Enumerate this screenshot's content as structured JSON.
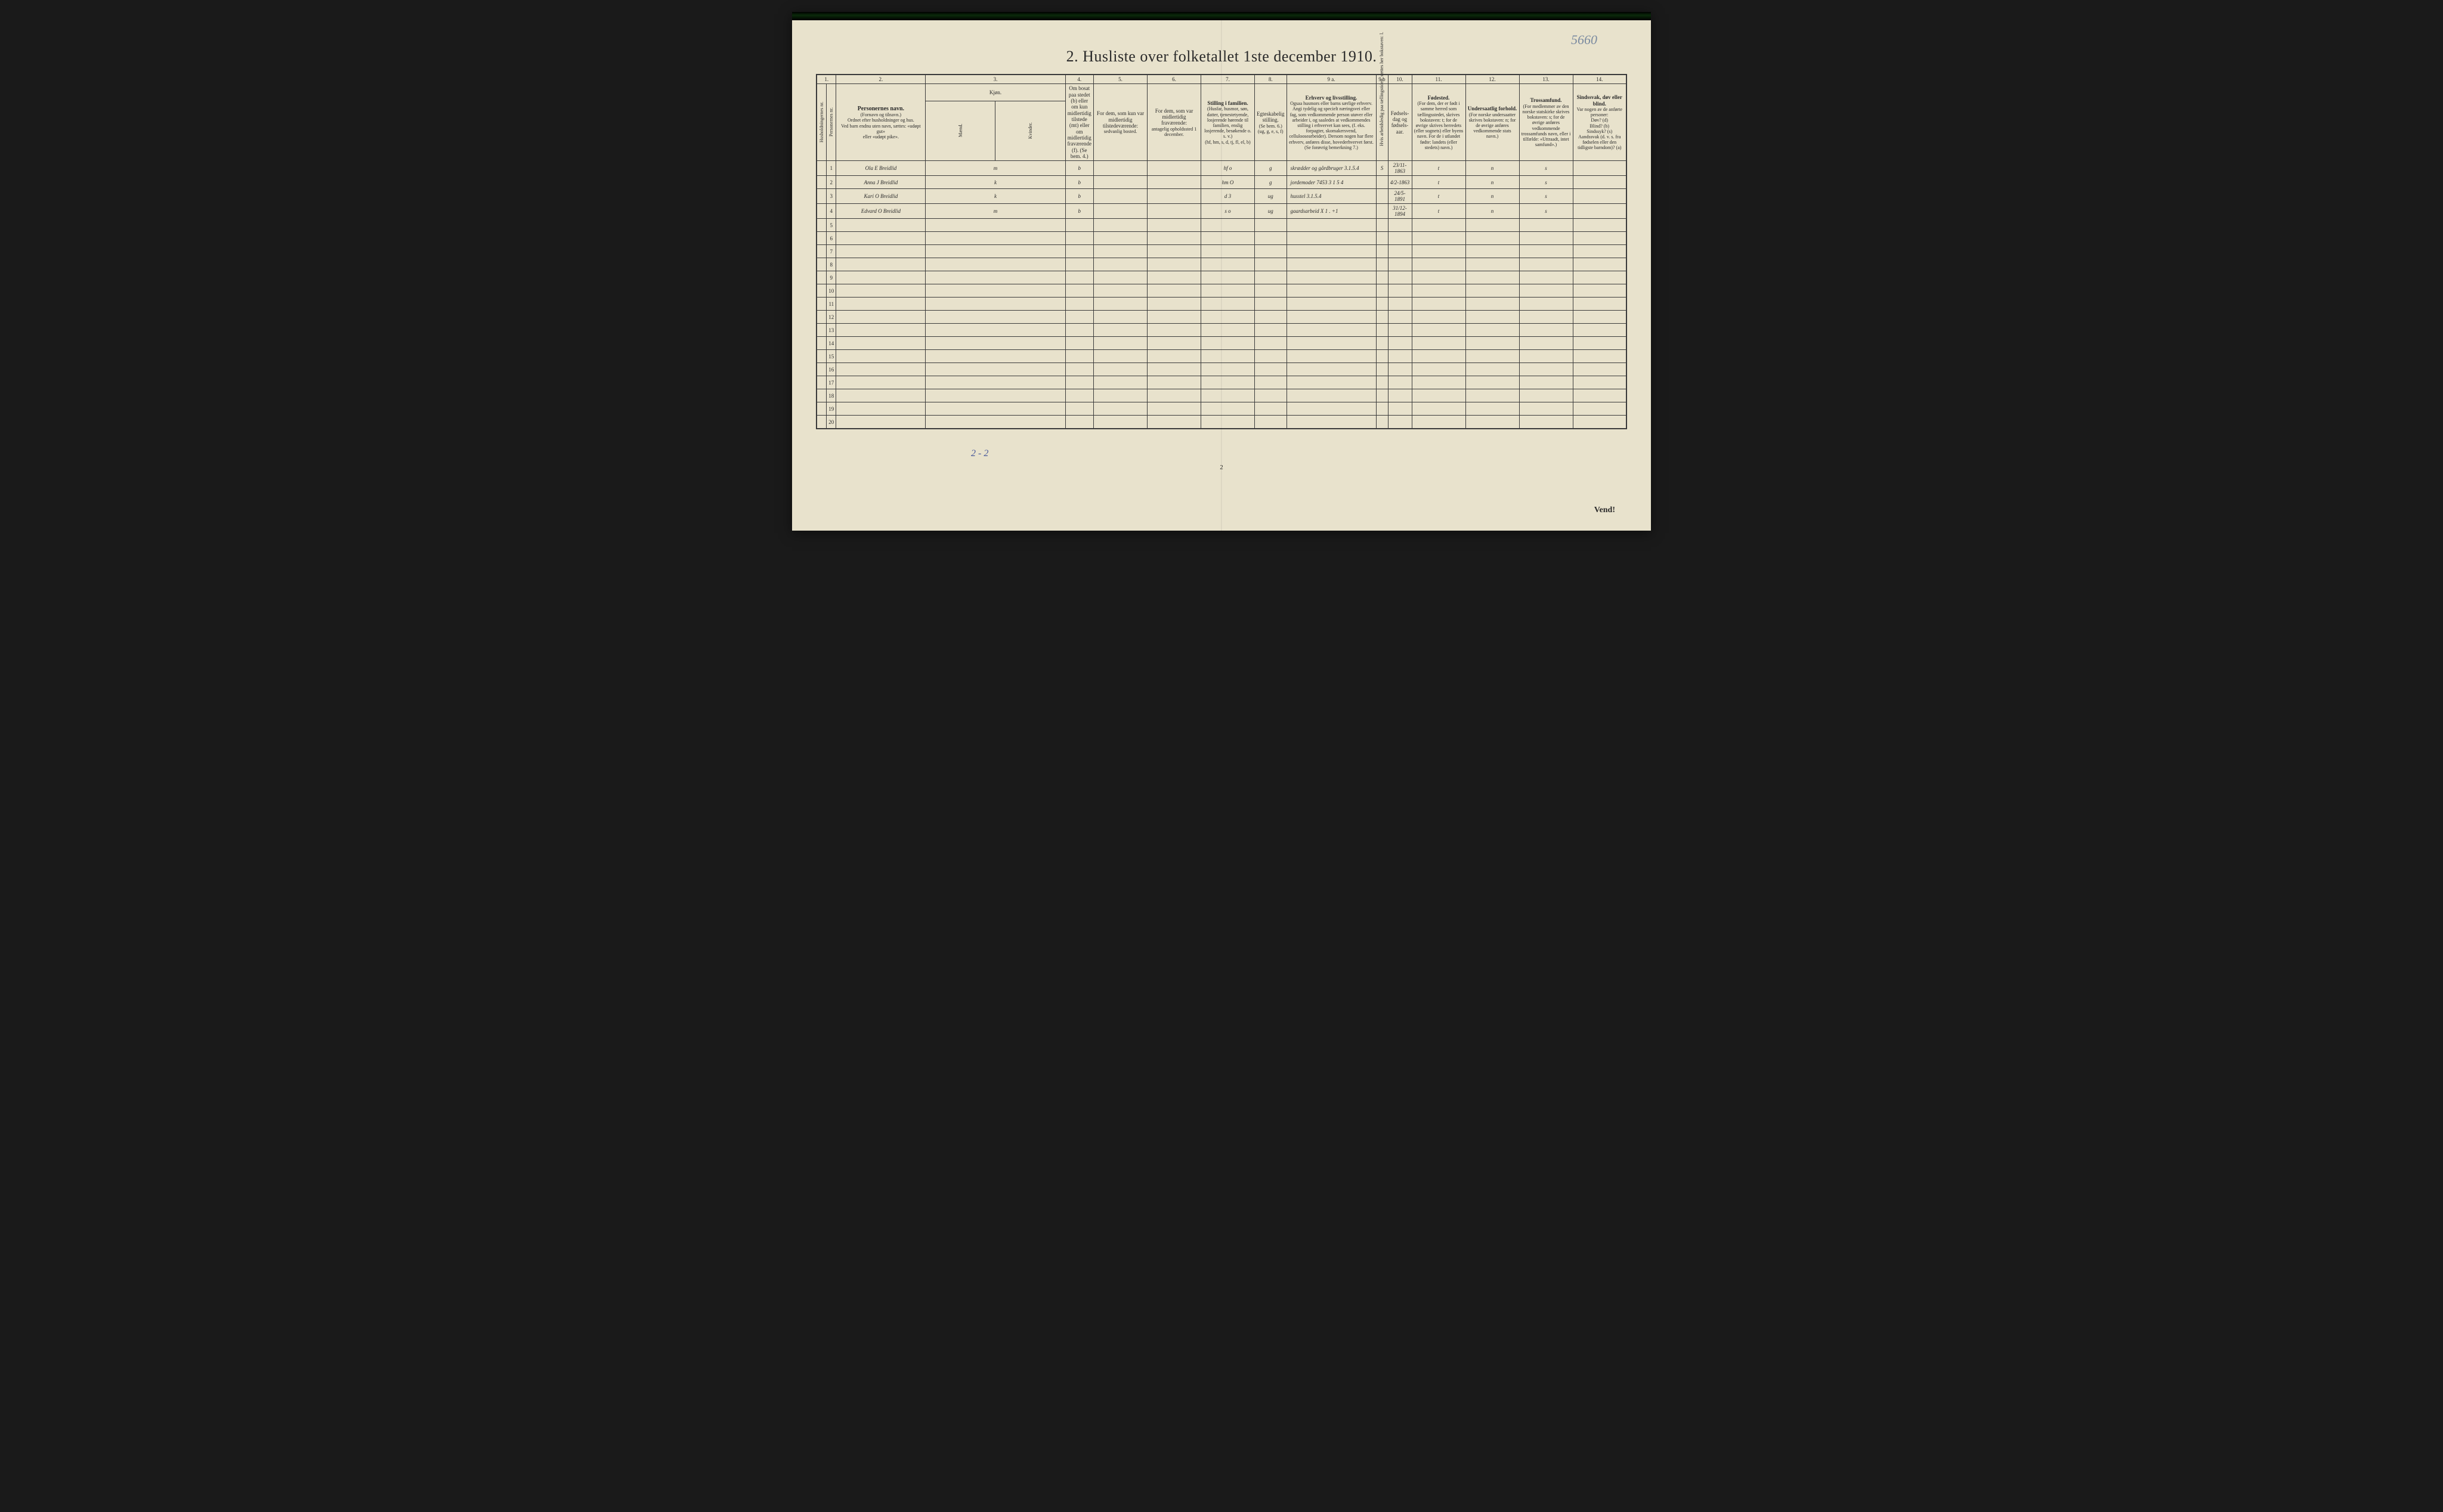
{
  "page_title": "2.  Husliste over folketallet 1ste december 1910.",
  "handwritten_top_right": "5660",
  "footer_tally": "2 - 2",
  "footer_page": "2",
  "footer_vend": "Vend!",
  "colors": {
    "paper": "#e8e2cc",
    "ink": "#2a2a2a",
    "handwriting": "#4a4030",
    "blue_ink": "#4a5a9a",
    "border": "#3a3a3a",
    "background": "#1a1a1a"
  },
  "columns": {
    "nums": [
      "1.",
      "2.",
      "3.",
      "4.",
      "5.",
      "6.",
      "7.",
      "8.",
      "9 a.",
      "9 b",
      "10.",
      "11.",
      "12.",
      "13.",
      "14."
    ],
    "h1_vert": "Husholdningernes nr.",
    "h1b_vert": "Personernes nr.",
    "h2_title": "Personernes navn.",
    "h2_sub": "(Fornavn og tilnavn.)\nOrdnet efter husholdninger og hus.\nVed barn endnu uten navn, sættes: «udøpt gut»\neller «udøpt pike».",
    "h3_title": "Kjøn.",
    "h3_sub_m": "Mænd.",
    "h3_sub_k": "Kvinder.",
    "h3_bottom": "m.  k.",
    "h4_main": "Om bosat paa stedet (b) eller om kun midlertidig tilstede (mt) eller om midlertidig fraværende (f). (Se bem. 4.)",
    "h5_title": "For dem, som kun var midlertidig tilstedeværende:",
    "h5_sub": "sedvanlig bosted.",
    "h6_title": "For dem, som var midlertidig fraværende:",
    "h6_sub": "antagelig opholdssted 1 december.",
    "h7_title": "Stilling i familien.",
    "h7_sub": "(Husfar, husmor, søn, datter, tjenestetyende, losjerende hørende til familien, enslig losjerende, besøkende o. s. v.)\n(hf, hm, s, d, tj, fl, el, b)",
    "h8_title": "Egteskabelig stilling.",
    "h8_sub": "(Se bem. 6.)\n(ug, g, e, s, f)",
    "h9a_title": "Erhverv og livsstilling.",
    "h9a_sub": "Ogsaa husmors eller barns særlige erhverv. Angi tydelig og specielt næringsvei eller fag, som vedkommende person utøver eller arbeider i, og saaledes at vedkommendes stilling i erhvervet kan sees, (f. eks. forpagter, skomakersvend, celluloosearbeider). Dersom nogen har flere erhverv, anføres disse, hovederhvervet først.\n(Se forøvrig bemerkning 7.)",
    "h9b_vert": "Hvis arbeidsledig paa tællingstiden, sættes her bokstaven: l.",
    "h10_title": "Fødsels-dag og fødsels-aar.",
    "h11_title": "Fødested.",
    "h11_sub": "(For dem, der er født i samme herred som tællingsstedet, skrives bokstaven: t; for de øvrige skrives herredets (eller sognets) eller byens navn. For de i utlandet fødte: landets (eller stedets) navn.)",
    "h12_title": "Undersaatlig forhold.",
    "h12_sub": "(For norske undersaatter skrives bokstaven: n; for de øvrige anføres vedkommende stats navn.)",
    "h13_title": "Trossamfund.",
    "h13_sub": "(For medlemmer av den norske statskirke skrives bokstaven: s; for de øvrige anføres vedkommende trossamfunds navn, eller i tilfælde: «Uttraadt, intet samfund».)",
    "h14_title": "Sindssvak, døv eller blind.",
    "h14_sub": "Var nogen av de anførte personer:\nDøv? (d)\nBlind? (b)\nSindssyk? (s)\nAandssvak (d. v. s. fra fødselen eller den tidligste barndom)? (a)"
  },
  "rows": [
    {
      "n": "1",
      "name": "Ola E Breidlid",
      "mk": "m",
      "b": "b",
      "c5": "",
      "c6": "",
      "c7": "hf    o",
      "c8": "g",
      "c9a": "skrædder og gårdbruger  3.1.5.4",
      "c9b": "S",
      "c10": "23/11-1863",
      "c11": "t",
      "c12": "n",
      "c13": "s",
      "c14": ""
    },
    {
      "n": "2",
      "name": "Anna J Breidlid",
      "mk": "k",
      "b": "b",
      "c5": "",
      "c6": "",
      "c7": "hm   O",
      "c8": "g",
      "c9a": "jordemoder   7453 3 1 5 4",
      "c9b": "",
      "c10": "4/2-1863",
      "c11": "t",
      "c12": "n",
      "c13": "s",
      "c14": ""
    },
    {
      "n": "3",
      "name": "Kari O Breidlid",
      "mk": "k",
      "b": "b",
      "c5": "",
      "c6": "",
      "c7": "d     3",
      "c8": "ug",
      "c9a": "husstel   3.1.5.4",
      "c9b": "",
      "c10": "24/5-1891",
      "c11": "t",
      "c12": "n",
      "c13": "s",
      "c14": ""
    },
    {
      "n": "4",
      "name": "Edvard O Breidlid",
      "mk": "m",
      "b": "b",
      "c5": "",
      "c6": "",
      "c7": "s     o",
      "c8": "ug",
      "c9a": "gaardsarbeid   X 1 .  +1",
      "c9b": "",
      "c10": "31/12-1894",
      "c11": "t",
      "c12": "n",
      "c13": "s",
      "c14": ""
    }
  ],
  "empty_rows": [
    "5",
    "6",
    "7",
    "8",
    "9",
    "10",
    "11",
    "12",
    "13",
    "14",
    "15",
    "16",
    "17",
    "18",
    "19",
    "20"
  ]
}
